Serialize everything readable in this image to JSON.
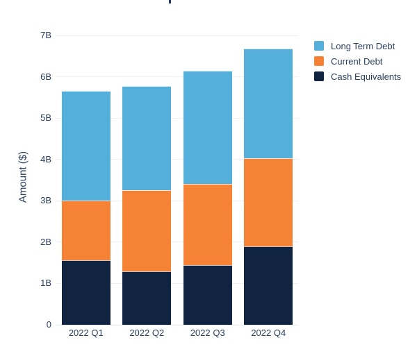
{
  "y_axis": {
    "title": "Amount ($)",
    "tick_labels": [
      "0",
      "1B",
      "2B",
      "3B",
      "4B",
      "5B",
      "6B",
      "7B"
    ]
  },
  "x_axis": {
    "tick_labels": [
      "2022 Q1",
      "2022 Q2",
      "2022 Q3",
      "2022 Q4"
    ]
  },
  "legend": {
    "position": "top-right",
    "items": [
      {
        "label": "Long Term Debt",
        "color": "#54afdb"
      },
      {
        "label": "Current Debt",
        "color": "#f58235"
      },
      {
        "label": "Cash Equivalents",
        "color": "#102340"
      }
    ]
  },
  "colors": {
    "long_term_debt": "#54afdb",
    "current_debt": "#f58235",
    "cash_equivalents": "#102340",
    "text": "#2a3f5f",
    "gridline": "#edf1f7",
    "background": "#ffffff"
  },
  "chart_data": {
    "type": "bar",
    "stacked": true,
    "categories": [
      "2022 Q1",
      "2022 Q2",
      "2022 Q3",
      "2022 Q4"
    ],
    "series": [
      {
        "name": "Cash Equivalents",
        "color": "#102340",
        "values": [
          1.56,
          1.3,
          1.44,
          1.9
        ]
      },
      {
        "name": "Current Debt",
        "color": "#f58235",
        "values": [
          1.45,
          1.95,
          1.96,
          2.13
        ]
      },
      {
        "name": "Long Term Debt",
        "color": "#54afdb",
        "values": [
          2.65,
          2.52,
          2.74,
          2.65
        ]
      }
    ],
    "stack_totals": [
      5.66,
      5.77,
      6.14,
      6.68
    ],
    "title": "",
    "xlabel": "",
    "ylabel": "Amount ($)",
    "ylim": [
      0,
      7
    ],
    "yticks": [
      0,
      1,
      2,
      3,
      4,
      5,
      6,
      7
    ],
    "unit": "B",
    "grid": true,
    "legend_position": "top-right",
    "legend_order": [
      "Long Term Debt",
      "Current Debt",
      "Cash Equivalents"
    ]
  }
}
